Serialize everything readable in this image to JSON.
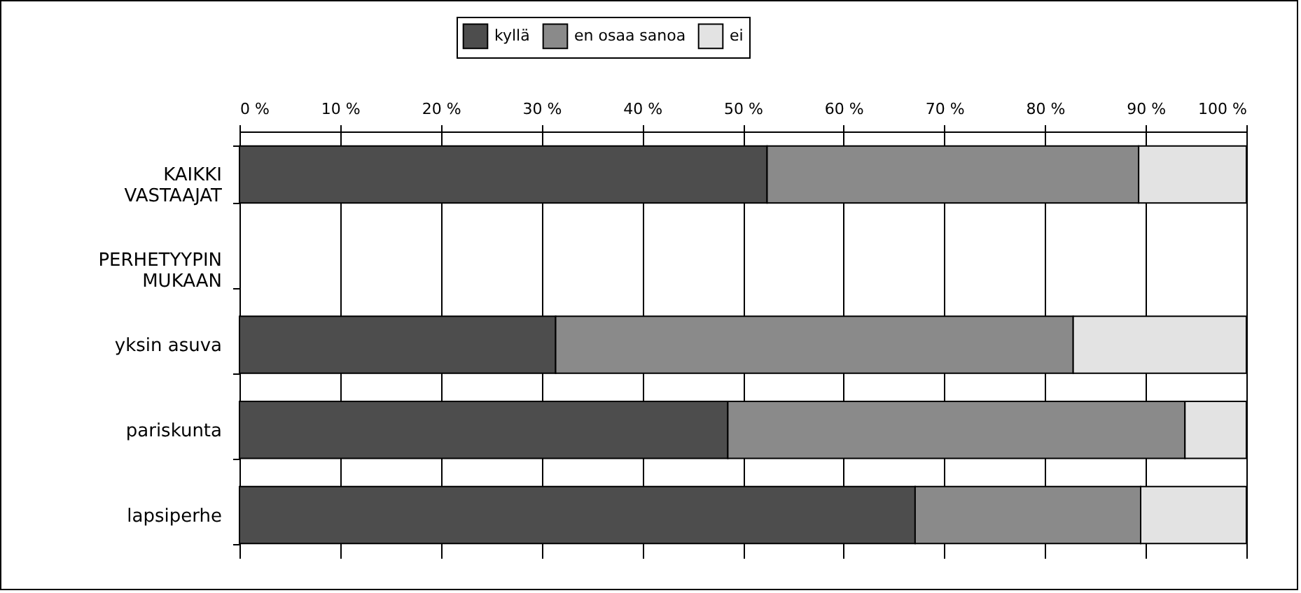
{
  "chart_data": {
    "type": "bar",
    "orientation": "horizontal",
    "stacked": true,
    "categories": [
      "KAIKKI\nVASTAAJAT",
      "PERHETYYPIN\nMUKAAN",
      "yksin asuva",
      "pariskunta",
      "lapsiperhe"
    ],
    "series": [
      {
        "name": "kyllä",
        "color": "#4d4d4d",
        "values": [
          52.4,
          null,
          31.4,
          48.5,
          67.1
        ]
      },
      {
        "name": "en osaa sanoa",
        "color": "#8a8a8a",
        "values": [
          36.9,
          null,
          51.4,
          45.4,
          22.4
        ]
      },
      {
        "name": "ei",
        "color": "#e3e3e3",
        "values": [
          10.7,
          null,
          17.2,
          6.1,
          10.5
        ]
      }
    ],
    "xlim": [
      0,
      100
    ],
    "xticks": [
      {
        "value": 0,
        "label": "0 %"
      },
      {
        "value": 10,
        "label": "10 %"
      },
      {
        "value": 20,
        "label": "20 %"
      },
      {
        "value": 30,
        "label": "30 %"
      },
      {
        "value": 40,
        "label": "40 %"
      },
      {
        "value": 50,
        "label": "50 %"
      },
      {
        "value": 60,
        "label": "60 %"
      },
      {
        "value": 70,
        "label": "70 %"
      },
      {
        "value": 80,
        "label": "80 %"
      },
      {
        "value": 90,
        "label": "90 %"
      },
      {
        "value": 100,
        "label": "100 %"
      }
    ],
    "grid": "x",
    "legend": "top"
  }
}
